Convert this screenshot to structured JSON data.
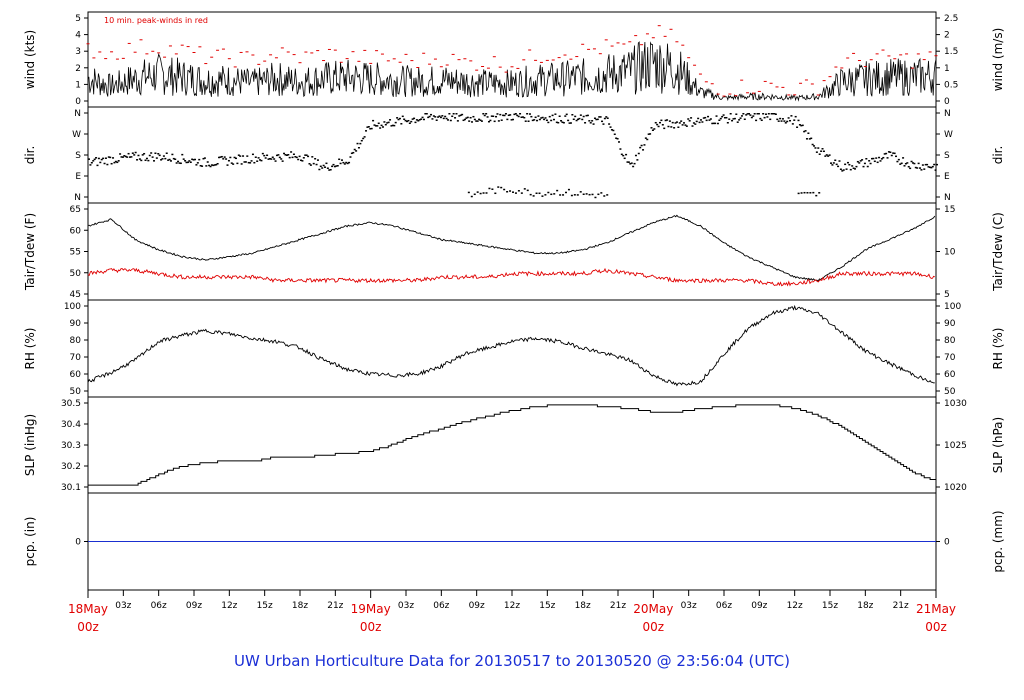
{
  "caption": "UW Urban Horticulture Data for 20130517  to  20130520 @ 23:56:04  (UTC)",
  "colors": {
    "trace": "#000000",
    "red": "#e00000",
    "pcp": "#1a2fd0",
    "caption": "#1b2fd6"
  },
  "chart_data": [
    {
      "type": "line",
      "ylabel_left": "wind (kts)",
      "ylabel_right": "wind (m/s)",
      "note": "10 min. peak-winds in red",
      "left_ticks": [
        "0",
        "1",
        "2",
        "3",
        "4",
        "5"
      ],
      "right_ticks": [
        "0",
        "0.5",
        "1",
        "1.5",
        "2",
        "2.5"
      ],
      "ylim": [
        0,
        5.6
      ],
      "x_hours": [
        0,
        2,
        4,
        6,
        8,
        10,
        12,
        14,
        16,
        18,
        20,
        22,
        24,
        26,
        28,
        30,
        32,
        34,
        36,
        38,
        40,
        42,
        44,
        46,
        48,
        50,
        52,
        54,
        56,
        58,
        60,
        62,
        64,
        66,
        68,
        70,
        72
      ],
      "series": [
        {
          "values": [
            1.5,
            1.0,
            1.5,
            1.8,
            1.6,
            1.4,
            1.4,
            1.2,
            1.5,
            1.3,
            1.5,
            1.6,
            1.5,
            1.4,
            1.3,
            1.4,
            1.3,
            1.2,
            1.2,
            1.4,
            1.5,
            1.6,
            1.8,
            2.0,
            2.6,
            2.2,
            0.6,
            0.2,
            0.3,
            0.3,
            0.2,
            0.3,
            1.3,
            1.5,
            1.6,
            1.6,
            1.7
          ]
        },
        {
          "values": [
            3.5,
            3.2,
            3.6,
            3.6,
            3.4,
            3.0,
            2.9,
            2.8,
            3.2,
            2.9,
            3.2,
            3.0,
            2.9,
            2.8,
            2.7,
            2.9,
            2.6,
            2.6,
            2.5,
            3.0,
            3.3,
            3.4,
            3.6,
            3.6,
            4.6,
            4.2,
            1.5,
            0.8,
            1.0,
            1.0,
            0.8,
            1.0,
            2.6,
            2.8,
            2.9,
            2.8,
            3.0
          ]
        }
      ]
    },
    {
      "type": "scatter",
      "ylabel_left": "dir.",
      "ylabel_right": "dir.",
      "left_ticks": [
        "N",
        "E",
        "S",
        "W",
        "N"
      ],
      "right_ticks": [
        "N",
        "E",
        "S",
        "W",
        "N"
      ],
      "ylim": [
        0,
        360
      ],
      "x_hours": [
        0,
        2,
        4,
        6,
        8,
        10,
        12,
        14,
        16,
        18,
        20,
        22,
        24,
        26,
        28,
        30,
        32,
        34,
        36,
        38,
        40,
        42,
        44,
        46,
        48,
        50,
        52,
        54,
        56,
        58,
        60,
        62,
        64,
        66,
        68,
        70,
        72
      ],
      "series": [
        {
          "values": [
            150,
            165,
            175,
            178,
            165,
            150,
            160,
            170,
            175,
            180,
            130,
            160,
            310,
            325,
            340,
            350,
            340,
            345,
            350,
            345,
            340,
            335,
            330,
            130,
            310,
            320,
            330,
            340,
            345,
            350,
            330,
            200,
            130,
            150,
            180,
            140,
            135
          ]
        },
        {
          "values": [
            null,
            null,
            null,
            null,
            null,
            null,
            null,
            null,
            null,
            null,
            null,
            null,
            null,
            null,
            null,
            null,
            5,
            30,
            35,
            20,
            25,
            15,
            10,
            null,
            null,
            null,
            null,
            40,
            null,
            null,
            10,
            15,
            null,
            null,
            null,
            null,
            null
          ]
        }
      ]
    },
    {
      "type": "line",
      "ylabel_left": "Tair/Tdew (F)",
      "ylabel_right": "Tair/Tdew (C)",
      "left_ticks": [
        "45",
        "50",
        "55",
        "60",
        "65"
      ],
      "right_ticks": [
        "5",
        "10",
        "15"
      ],
      "ylim": [
        42,
        67
      ],
      "x_hours": [
        0,
        2,
        4,
        6,
        8,
        10,
        12,
        14,
        16,
        18,
        20,
        22,
        24,
        26,
        28,
        30,
        32,
        34,
        36,
        38,
        40,
        42,
        44,
        46,
        48,
        50,
        52,
        54,
        56,
        58,
        60,
        62,
        64,
        66,
        68,
        70,
        72
      ],
      "series": [
        {
          "name": "Tair",
          "values": [
            62,
            64,
            58,
            55,
            53,
            52,
            53,
            54,
            56,
            58,
            60,
            62,
            63,
            62,
            60,
            58,
            57,
            56,
            55,
            54,
            54,
            55,
            57,
            60,
            63,
            65,
            62,
            57,
            53,
            50,
            47,
            46,
            50,
            55,
            58,
            61,
            65
          ]
        },
        {
          "name": "Tdew",
          "values": [
            48,
            49,
            49,
            48,
            47,
            47,
            47,
            47,
            46,
            46,
            46,
            46,
            46,
            46,
            46,
            47,
            47,
            47,
            48,
            48,
            48,
            48,
            49,
            48,
            47,
            46,
            46,
            46,
            46,
            45,
            45,
            46,
            48,
            48,
            48,
            48,
            47
          ]
        }
      ]
    },
    {
      "type": "line",
      "ylabel_left": "RH (%)",
      "ylabel_right": "RH (%)",
      "left_ticks": [
        "50",
        "60",
        "70",
        "80",
        "90",
        "100"
      ],
      "right_ticks": [
        "50",
        "60",
        "70",
        "80",
        "90",
        "100"
      ],
      "ylim": [
        46,
        101
      ],
      "x_hours": [
        0,
        2,
        4,
        6,
        8,
        10,
        12,
        14,
        16,
        18,
        20,
        22,
        24,
        26,
        28,
        30,
        32,
        34,
        36,
        38,
        40,
        42,
        44,
        46,
        48,
        50,
        52,
        54,
        56,
        58,
        60,
        62,
        64,
        66,
        68,
        70,
        72
      ],
      "series": [
        {
          "values": [
            52,
            58,
            66,
            78,
            82,
            85,
            83,
            80,
            78,
            74,
            66,
            60,
            57,
            56,
            57,
            62,
            70,
            74,
            78,
            80,
            78,
            74,
            70,
            66,
            56,
            50,
            52,
            70,
            86,
            96,
            100,
            96,
            84,
            72,
            64,
            57,
            50
          ]
        }
      ]
    },
    {
      "type": "line",
      "ylabel_left": "SLP (inHg)",
      "ylabel_right": "SLP (hPa)",
      "left_ticks": [
        "30.1",
        "30.2",
        "30.3",
        "30.4",
        "30.5"
      ],
      "right_ticks": [
        "1020",
        "1025",
        "1030"
      ],
      "ylim": [
        30.08,
        30.53
      ],
      "x_hours": [
        0,
        2,
        4,
        6,
        8,
        10,
        12,
        14,
        16,
        18,
        20,
        22,
        24,
        26,
        28,
        30,
        32,
        34,
        36,
        38,
        40,
        42,
        44,
        46,
        48,
        50,
        52,
        54,
        56,
        58,
        60,
        62,
        64,
        66,
        68,
        70,
        72
      ],
      "series": [
        {
          "values": [
            30.09,
            30.09,
            30.09,
            30.15,
            30.19,
            30.21,
            30.22,
            30.22,
            30.24,
            30.24,
            30.25,
            30.26,
            30.27,
            30.31,
            30.36,
            30.39,
            30.43,
            30.46,
            30.49,
            30.51,
            30.52,
            30.52,
            30.51,
            30.5,
            30.48,
            30.48,
            30.5,
            30.51,
            30.52,
            30.52,
            30.5,
            30.46,
            30.4,
            30.32,
            30.24,
            30.16,
            30.11
          ]
        }
      ]
    },
    {
      "type": "line",
      "ylabel_left": "pcp. (in)",
      "ylabel_right": "pcp. (mm)",
      "left_ticks": [
        "0"
      ],
      "right_ticks": [
        "0"
      ],
      "ylim": [
        -1,
        1
      ],
      "x_hours": [
        0,
        72
      ],
      "series": [
        {
          "values": [
            0,
            0
          ]
        }
      ]
    }
  ],
  "x_axis": {
    "hour_ticks": [
      "03z",
      "06z",
      "09z",
      "12z",
      "15z",
      "18z",
      "21z",
      "03z",
      "06z",
      "09z",
      "12z",
      "15z",
      "18z",
      "21z",
      "03z",
      "06z",
      "09z",
      "12z",
      "15z",
      "18z",
      "21z"
    ],
    "day_labels": [
      {
        "day": "18May",
        "hour": "00z"
      },
      {
        "day": "19May",
        "hour": "00z"
      },
      {
        "day": "20May",
        "hour": "00z"
      },
      {
        "day": "21May",
        "hour": "00z"
      }
    ]
  }
}
